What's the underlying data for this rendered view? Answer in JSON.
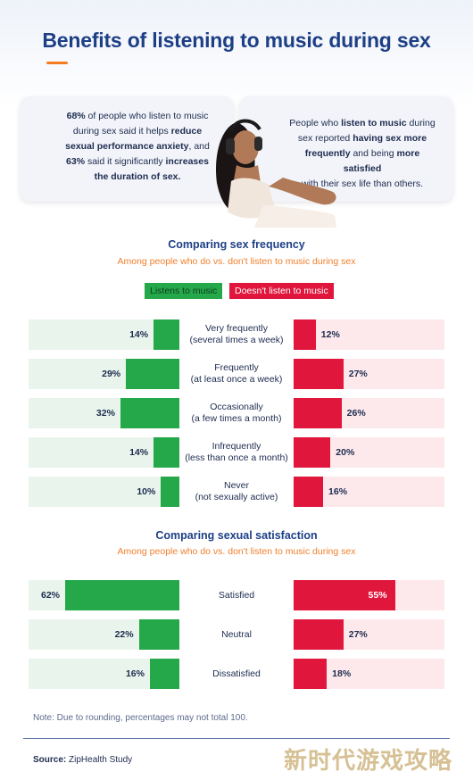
{
  "title": "Benefits of listening to music during sex",
  "colors": {
    "green": "#25a84a",
    "red": "#e0163c",
    "accent": "#f47b20",
    "navy": "#1d3f86"
  },
  "card_left": {
    "lines": [
      [
        {
          "t": "68%",
          "b": true
        },
        {
          "t": " of people who listen to music",
          "b": false
        }
      ],
      [
        {
          "t": "during sex said it helps ",
          "b": false
        },
        {
          "t": "reduce",
          "b": true
        }
      ],
      [
        {
          "t": "sexual performance anxiety",
          "b": true
        },
        {
          "t": ", and",
          "b": false
        }
      ],
      [
        {
          "t": "63%",
          "b": true
        },
        {
          "t": " said it significantly ",
          "b": false
        },
        {
          "t": "increases",
          "b": true
        }
      ],
      [
        {
          "t": "the duration of sex.",
          "b": true
        }
      ]
    ]
  },
  "card_right": {
    "lines": [
      [
        {
          "t": "People who ",
          "b": false
        },
        {
          "t": "listen to music",
          "b": true
        },
        {
          "t": " during",
          "b": false
        }
      ],
      [
        {
          "t": "sex reported ",
          "b": false
        },
        {
          "t": "having sex more",
          "b": true
        }
      ],
      [
        {
          "t": "frequently",
          "b": true
        },
        {
          "t": " and being ",
          "b": false
        },
        {
          "t": "more satisfied",
          "b": true
        }
      ],
      [
        {
          "t": "with their sex life than others.",
          "b": false
        }
      ]
    ]
  },
  "legend": {
    "listens": "Listens to music",
    "not_listens": "Doesn't listen to music"
  },
  "chart_data": [
    {
      "type": "bar",
      "title": "Comparing sex frequency",
      "subtitle": "Among people who do vs. don't listen to music during sex",
      "categories": [
        "Very frequently\n(several times a week)",
        "Frequently\n(at least once a week)",
        "Occasionally\n(a few times a month)",
        "Infrequently\n(less than once a month)",
        "Never\n(not sexually active)"
      ],
      "series": [
        {
          "name": "Listens to music",
          "values": [
            14,
            29,
            32,
            14,
            10
          ],
          "labels": [
            "14%",
            "29%",
            "32%",
            "14%",
            "10%"
          ]
        },
        {
          "name": "Doesn't listen to music",
          "values": [
            12,
            27,
            26,
            20,
            16
          ],
          "labels": [
            "12%",
            "27%",
            "26%",
            "20%",
            "16%"
          ]
        }
      ]
    },
    {
      "type": "bar",
      "title": "Comparing sexual satisfaction",
      "subtitle": "Among people who do vs. don't listen to music during sex",
      "categories": [
        "Satisfied",
        "Neutral",
        "Dissatisfied"
      ],
      "series": [
        {
          "name": "Listens to music",
          "values": [
            62,
            22,
            16
          ],
          "labels": [
            "62%",
            "22%",
            "16%"
          ]
        },
        {
          "name": "Doesn't listen to music",
          "values": [
            55,
            27,
            18
          ],
          "labels": [
            "55%",
            "27%",
            "18%"
          ]
        }
      ]
    }
  ],
  "note": "Note: Due to rounding, percentages may not total 100.",
  "source": {
    "label": "Source:",
    "value": " ZipHealth Study"
  },
  "watermark": "新时代游戏攻略"
}
